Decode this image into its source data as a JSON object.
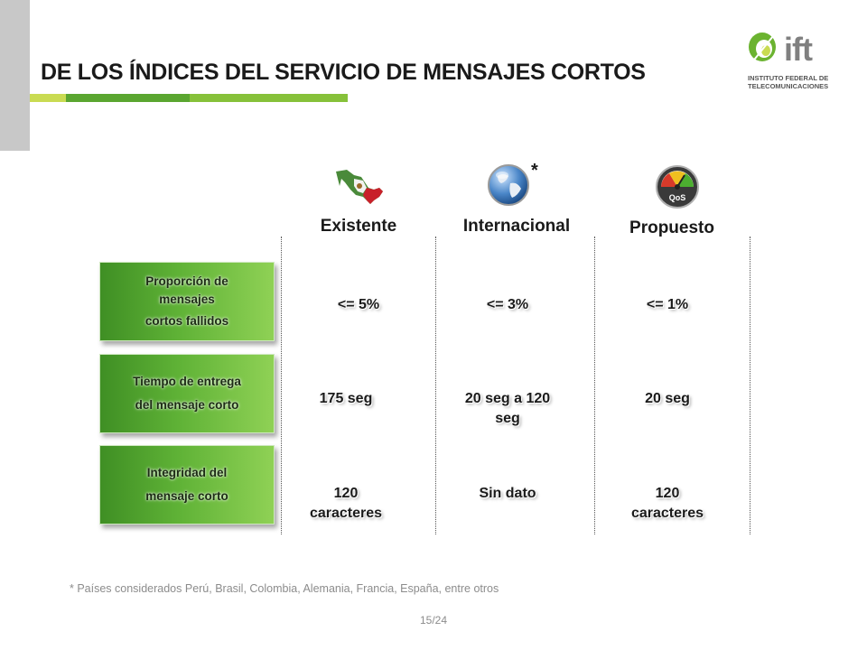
{
  "slide": {
    "title": "DE LOS ÍNDICES DEL SERVICIO DE MENSAJES CORTOS",
    "logo": {
      "word": "ift",
      "subtitle_line1": "INSTITUTO FEDERAL DE",
      "subtitle_line2": "TELECOMUNICACIONES"
    },
    "columns": [
      {
        "header": "Existente",
        "icon": "mexico-map-icon"
      },
      {
        "header": "Internacional",
        "icon": "globe-icon",
        "marker": "*"
      },
      {
        "header": "Propuesto",
        "icon": "qos-gauge-icon",
        "icon_text": "QoS"
      }
    ],
    "rows": [
      {
        "label_lines": [
          "Proporción de",
          "mensajes",
          "cortos fallidos"
        ],
        "values": [
          [
            "<= 5%"
          ],
          [
            "<= 3%"
          ],
          [
            "<= 1%"
          ]
        ]
      },
      {
        "label_lines": [
          "Tiempo de entrega",
          "del mensaje corto"
        ],
        "values": [
          [
            "175 seg"
          ],
          [
            "20 seg a 120",
            "seg"
          ],
          [
            "20 seg"
          ]
        ]
      },
      {
        "label_lines": [
          "Integridad del",
          "mensaje corto"
        ],
        "values": [
          [
            "120",
            "caracteres"
          ],
          [
            "Sin dato"
          ],
          [
            "120",
            "caracteres"
          ]
        ]
      }
    ],
    "footnote": "* Países considerados Perú, Brasil, Colombia, Alemania, Francia, España, entre otros",
    "page_number": "15/24",
    "colors": {
      "green_dark": "#3f8f24",
      "green_light": "#8fd155",
      "lime": "#c9db52",
      "gray_bar": "#c8c8c8"
    }
  }
}
